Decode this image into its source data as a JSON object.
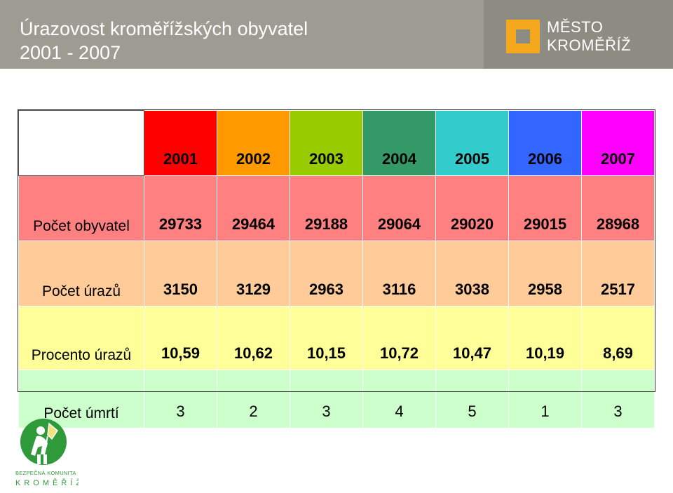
{
  "title": {
    "line1": "Úrazovost kroměřížských obyvatel",
    "line2": "2001 - 2007"
  },
  "logo": {
    "line1": "MĚSTO",
    "line2": "KROMĚŘÍŽ"
  },
  "table": {
    "years": [
      "2001",
      "2002",
      "2003",
      "2004",
      "2005",
      "2006",
      "2007"
    ],
    "year_colors": [
      "#ff0000",
      "#ff9900",
      "#99cc00",
      "#339966",
      "#33cccc",
      "#3366ff",
      "#ff00ff"
    ],
    "rows": [
      {
        "label": "Počet obyvatel",
        "values": [
          "29733",
          "29464",
          "29188",
          "29064",
          "29020",
          "29015",
          "28968"
        ],
        "color": "#ff8080"
      },
      {
        "label": "Počet úrazů",
        "values": [
          "3150",
          "3129",
          "2963",
          "3116",
          "3038",
          "2958",
          "2517"
        ],
        "color": "#ffcc99"
      },
      {
        "label": "Procento úrazů",
        "values": [
          "10,59",
          "10,62",
          "10,15",
          "10,72",
          "10,47",
          "10,19",
          "8,69"
        ],
        "color": "#ffff99"
      },
      {
        "label": "Počet úmrtí",
        "values": [
          "3",
          "2",
          "3",
          "4",
          "5",
          "1",
          "3"
        ],
        "color": "#ccffcc"
      }
    ]
  },
  "badge": {
    "line1": "BEZPEČNÁ KOMUNITA",
    "line2": "KROMĚŘÍŽ",
    "color": "#2e9a3a"
  }
}
